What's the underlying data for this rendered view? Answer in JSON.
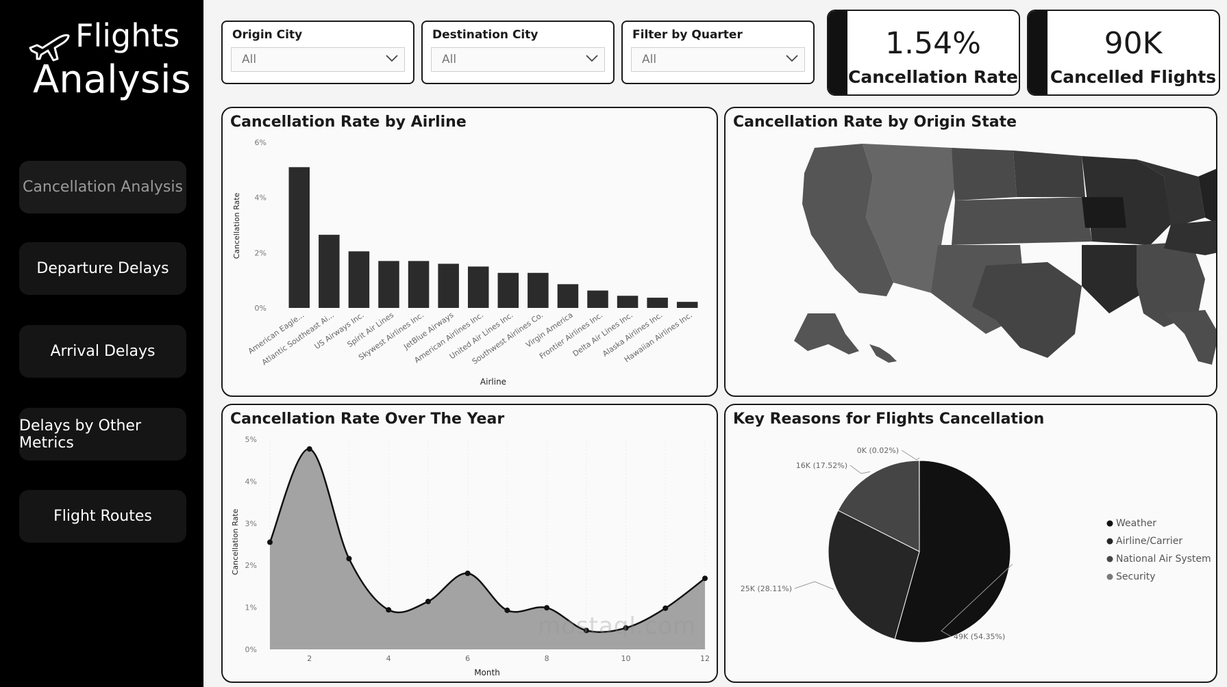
{
  "app": {
    "title_line1": "Flights",
    "title_line2": "Analysis"
  },
  "nav": [
    {
      "label": "Cancellation Analysis",
      "active": true
    },
    {
      "label": "Departure Delays"
    },
    {
      "label": "Arrival Delays"
    },
    {
      "label": "Delays by Other Metrics"
    },
    {
      "label": "Flight Routes"
    }
  ],
  "filters": {
    "origin": {
      "label": "Origin City",
      "value": "All"
    },
    "destination": {
      "label": "Destination City",
      "value": "All"
    },
    "quarter": {
      "label": "Filter by Quarter",
      "value": "All"
    }
  },
  "kpis": {
    "rate": {
      "value": "1.54%",
      "label": "Cancellation Rate"
    },
    "count": {
      "value": "90K",
      "label": "Cancelled Flights"
    }
  },
  "cards": {
    "airline": "Cancellation Rate by Airline",
    "state": "Cancellation Rate by Origin State",
    "year": "Cancellation Rate Over The Year",
    "reasons": "Key Reasons for Flights Cancellation"
  },
  "watermark": "mostaql.com",
  "chart_data": [
    {
      "type": "bar",
      "title": "Cancellation Rate by Airline",
      "xlabel": "Airline",
      "ylabel": "Cancellation Rate",
      "ylim": [
        0,
        6
      ],
      "yticks": [
        "0%",
        "2%",
        "4%",
        "6%"
      ],
      "categories": [
        "American Eagle...",
        "Atlantic Southeast Ai...",
        "US Airways Inc.",
        "Spirit Air Lines",
        "Skywest Airlines Inc.",
        "JetBlue Airways",
        "American Airlines Inc.",
        "United Air Lines Inc.",
        "Southwest Airlines Co.",
        "Virgin America",
        "Frontier Airlines Inc.",
        "Delta Air Lines Inc.",
        "Alaska Airlines Inc.",
        "Hawaiian Airlines Inc."
      ],
      "values": [
        5.1,
        2.65,
        2.05,
        1.7,
        1.7,
        1.6,
        1.5,
        1.27,
        1.27,
        0.86,
        0.63,
        0.44,
        0.37,
        0.22
      ]
    },
    {
      "type": "area",
      "title": "Cancellation Rate Over The Year",
      "xlabel": "Month",
      "ylabel": "Cancellation Rate",
      "ylim": [
        0,
        5
      ],
      "yticks": [
        "0%",
        "1%",
        "2%",
        "3%",
        "4%",
        "5%"
      ],
      "xticks": [
        "2",
        "4",
        "6",
        "8",
        "10",
        "12"
      ],
      "x": [
        1,
        2,
        3,
        4,
        5,
        6,
        7,
        8,
        9,
        10,
        11,
        12
      ],
      "values": [
        2.55,
        4.77,
        2.16,
        0.94,
        1.14,
        1.81,
        0.93,
        0.99,
        0.45,
        0.51,
        0.98,
        1.69
      ]
    },
    {
      "type": "pie",
      "title": "Key Reasons for Flights Cancellation",
      "slices": [
        {
          "name": "Weather",
          "value": 54.35,
          "label": "49K (54.35%)",
          "color": "#111111"
        },
        {
          "name": "Airline/Carrier",
          "value": 28.11,
          "label": "25K (28.11%)",
          "color": "#262626"
        },
        {
          "name": "National Air System",
          "value": 17.52,
          "label": "16K (17.52%)",
          "color": "#454545"
        },
        {
          "name": "Security",
          "value": 0.02,
          "label": "0K (0.02%)",
          "color": "#7a7a7a"
        }
      ]
    }
  ]
}
